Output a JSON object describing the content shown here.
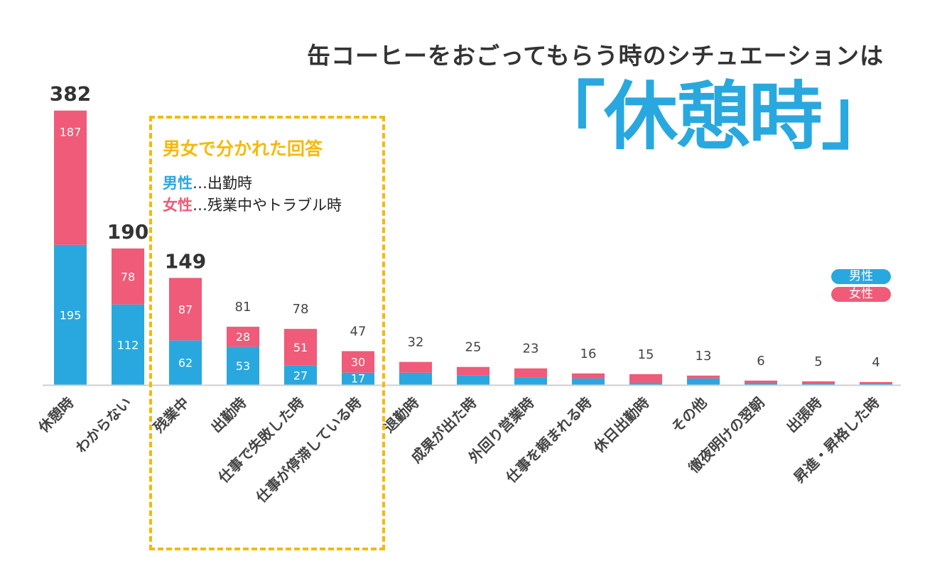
{
  "headline": "缶コーヒーをおごってもらう時のシチュエーションは",
  "big_title": "「休憩時」",
  "callout": {
    "title": "男女で分かれた回答",
    "male_label": "男性",
    "male_text": "…出勤時",
    "female_label": "女性",
    "female_text": "…残業中やトラブル時"
  },
  "colors": {
    "male": "#29a8df",
    "female": "#ef5b78",
    "highlight": "#f5b90a"
  },
  "chart_data": {
    "type": "bar",
    "stacked": true,
    "title": "缶コーヒーをおごってもらう時のシチュエーションは「休憩時」",
    "categories": [
      "休憩時",
      "わからない",
      "残業中",
      "出勤時",
      "仕事で失敗した時",
      "仕事が停滞している時",
      "退勤時",
      "成果が出た時",
      "外回り営業時",
      "仕事を頼まれる時",
      "休日出勤時",
      "その他",
      "徹夜明けの翌朝",
      "出張時",
      "昇進・昇格した時"
    ],
    "totals": [
      382,
      190,
      149,
      81,
      78,
      47,
      32,
      25,
      23,
      16,
      15,
      13,
      6,
      5,
      4
    ],
    "series": [
      {
        "name": "男性",
        "values": [
          195,
          112,
          62,
          53,
          27,
          17,
          17,
          13,
          10,
          9,
          3,
          9,
          3,
          2,
          2
        ]
      },
      {
        "name": "女性",
        "values": [
          187,
          78,
          87,
          28,
          51,
          30,
          15,
          12,
          13,
          7,
          12,
          4,
          3,
          3,
          2
        ]
      }
    ],
    "segment_labels_shown_for_first": 6,
    "emphasized_totals_for_first": 3,
    "legend": [
      "男性",
      "女性"
    ],
    "legend_position": "right",
    "ylim": [
      0,
      400
    ],
    "xlabel": "",
    "ylabel": ""
  }
}
